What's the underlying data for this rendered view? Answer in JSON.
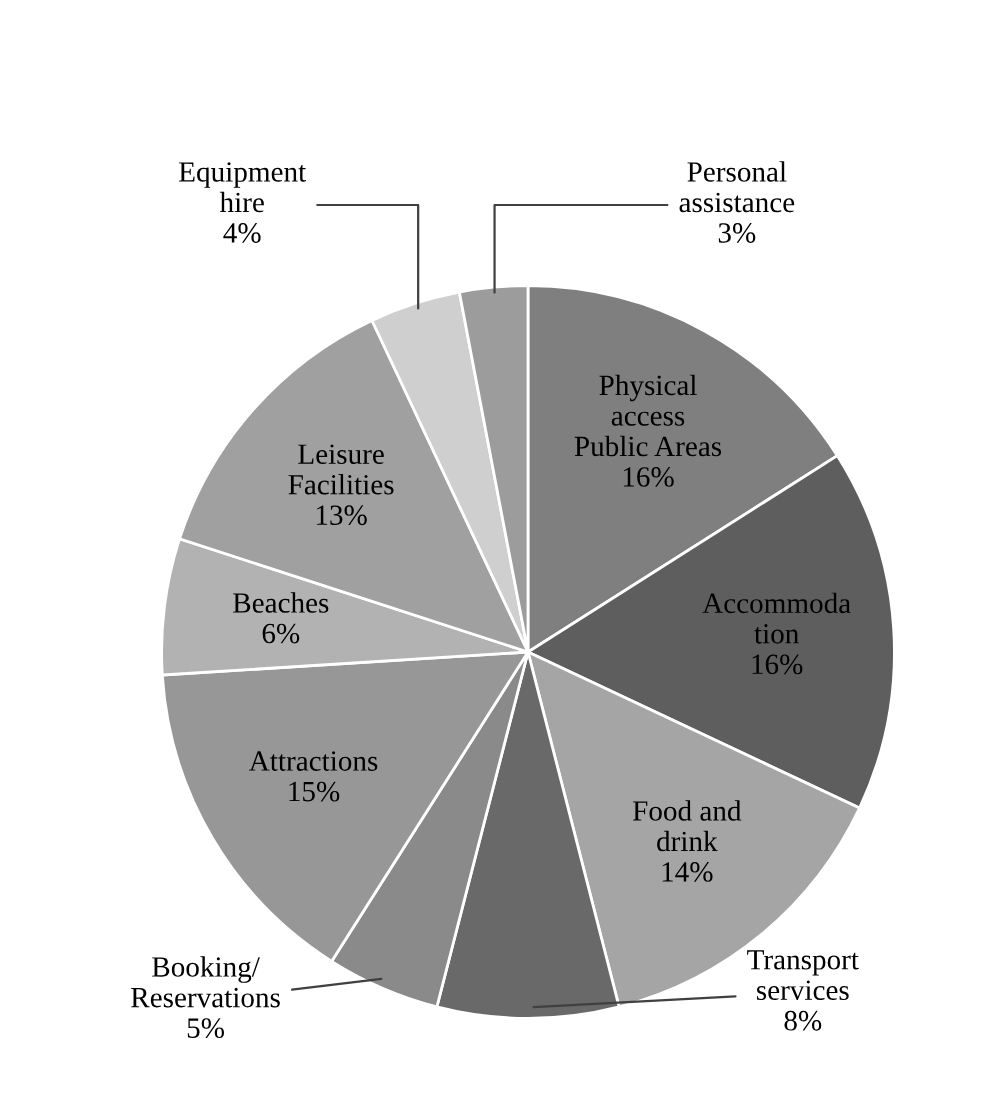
{
  "chart_data": {
    "type": "pie",
    "categories": [
      "Physical\naccess\nPublic Areas",
      "Accommoda\ntion",
      "Food and\ndrink",
      "Transport\nservices",
      "Booking/\nReservations",
      "Attractions",
      "Beaches",
      "Leisure\nFacilities",
      "Equipment\nhire",
      "Personal\nassistance"
    ],
    "values": [
      16,
      16,
      14,
      8,
      5,
      15,
      6,
      13,
      4,
      3
    ],
    "value_labels": [
      "16%",
      "16%",
      "14%",
      "8%",
      "5%",
      "15%",
      "6%",
      "13%",
      "4%",
      "3%"
    ],
    "colors": [
      "#7f7f7f",
      "#5e5e5e",
      "#a5a5a5",
      "#696969",
      "#8a8a8a",
      "#979797",
      "#b2b2b2",
      "#a0a0a0",
      "#cfcfcf",
      "#9c9c9c"
    ],
    "legend": false
  }
}
